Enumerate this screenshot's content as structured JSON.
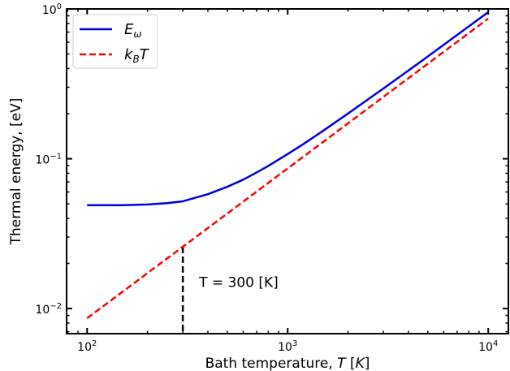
{
  "chart_data": {
    "type": "line",
    "x_scale": "log",
    "y_scale": "log",
    "xlim": [
      79,
      12600
    ],
    "ylim": [
      0.0068,
      1.0
    ],
    "xlabel": "Bath temperature, T [K]",
    "ylabel": "Thermal energy, [eV]",
    "x_ticks": [
      {
        "value": 100,
        "label": "10^2"
      },
      {
        "value": 1000,
        "label": "10^3"
      },
      {
        "value": 10000,
        "label": "10^4"
      }
    ],
    "y_ticks": [
      {
        "value": 0.01,
        "label": "10^-2"
      },
      {
        "value": 0.1,
        "label": "10^-1"
      },
      {
        "value": 1,
        "label": "10^0"
      }
    ],
    "series": [
      {
        "name": "E_ω",
        "color": "#0000e0",
        "style": "solid",
        "x": [
          100,
          150,
          200,
          250,
          300,
          400,
          500,
          600,
          700,
          800,
          1000,
          1200,
          1500,
          2000,
          2500,
          3000,
          4000,
          5000,
          6000,
          7000,
          8000,
          10000
        ],
        "y": [
          0.049,
          0.049,
          0.0495,
          0.0505,
          0.052,
          0.058,
          0.065,
          0.0725,
          0.081,
          0.0895,
          0.1075,
          0.1255,
          0.1535,
          0.2005,
          0.2475,
          0.2945,
          0.388,
          0.482,
          0.5765,
          0.6705,
          0.7645,
          0.952
        ]
      },
      {
        "name": "k_B T",
        "color": "#ff0000",
        "style": "dashed",
        "x": [
          100,
          10000
        ],
        "y": [
          0.00862,
          0.862
        ]
      }
    ],
    "legend": {
      "location": "top-left",
      "entries": [
        {
          "base": "E",
          "sub": "ω",
          "suffix": "",
          "color": "#0000e0",
          "style": "solid"
        },
        {
          "base": "k",
          "sub": "B",
          "suffix": "T",
          "color": "#ff0000",
          "style": "dashed"
        }
      ]
    },
    "annotation": {
      "text": "T = 300 [K]",
      "x": 300,
      "y_from": 0.0068,
      "y_to": 0.0259
    },
    "grid": false
  }
}
